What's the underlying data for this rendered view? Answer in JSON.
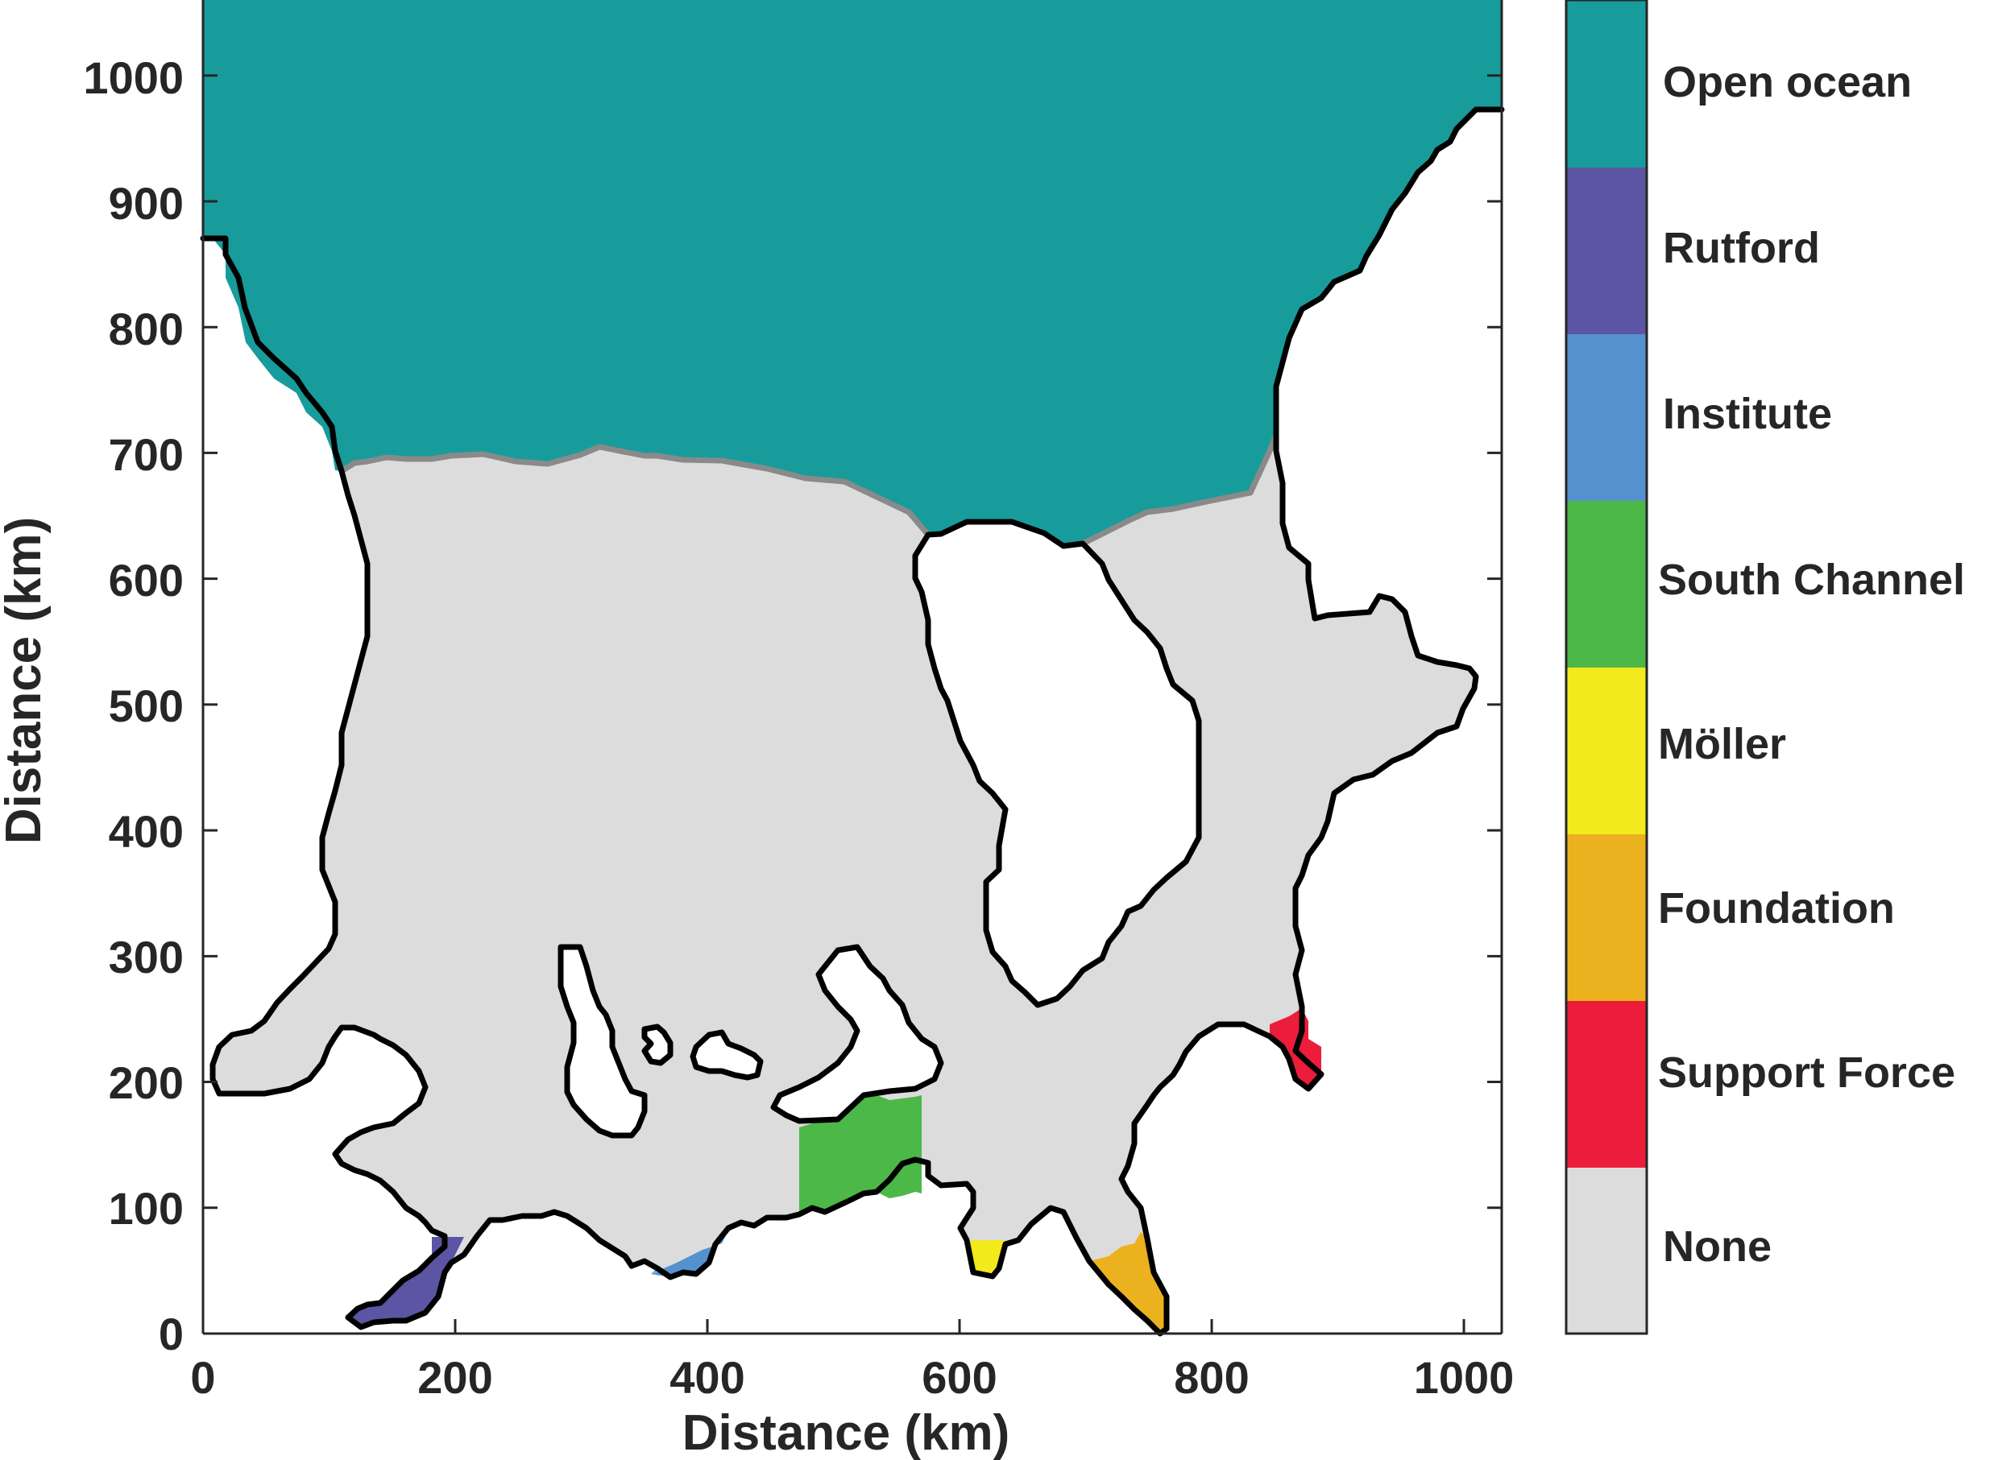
{
  "map": {
    "x_axis": {
      "label": "Distance (km)",
      "ticks": [
        "0",
        "200",
        "400",
        "600",
        "800",
        "1000"
      ]
    },
    "y_axis": {
      "label": "Distance (km)",
      "ticks": [
        "0",
        "100",
        "200",
        "300",
        "400",
        "500",
        "600",
        "700",
        "800",
        "900",
        "1000"
      ]
    },
    "x_range_km": [
      0,
      1030
    ],
    "y_range_km": [
      0,
      1060
    ],
    "background_color": "#ffffff",
    "coastline_color": "#000000",
    "ice_front_color": "#8a8a8a"
  },
  "legend": {
    "items": [
      {
        "label": "Open ocean",
        "color": "#179c9b"
      },
      {
        "label": "Rutford",
        "color": "#5b55a4"
      },
      {
        "label": "Institute",
        "color": "#5591cf"
      },
      {
        "label": "South Channel",
        "color": "#4cb848"
      },
      {
        "label": "Möller",
        "color": "#f2ea1d"
      },
      {
        "label": "Foundation",
        "color": "#ecb11f"
      },
      {
        "label": "Support Force",
        "color": "#ec1c3b"
      },
      {
        "label": "None",
        "color": "#dcdcdc"
      }
    ]
  }
}
